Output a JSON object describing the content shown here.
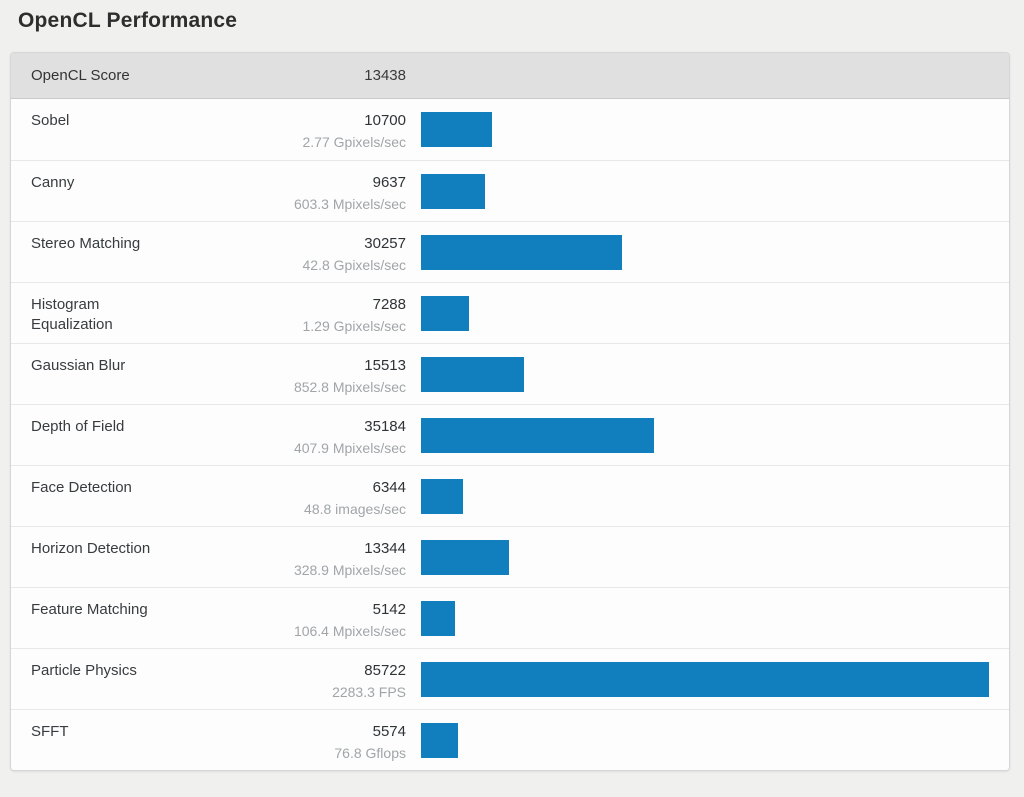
{
  "chart_data": {
    "type": "bar",
    "orientation": "horizontal",
    "title": "OpenCL Performance",
    "overall_score": {
      "label": "OpenCL Score",
      "value": 13438
    },
    "categories": [
      "Sobel",
      "Canny",
      "Stereo Matching",
      "Histogram Equalization",
      "Gaussian Blur",
      "Depth of Field",
      "Face Detection",
      "Horizon Detection",
      "Feature Matching",
      "Particle Physics",
      "SFFT"
    ],
    "values": [
      10700,
      9637,
      30257,
      7288,
      15513,
      35184,
      6344,
      13344,
      5142,
      85722,
      5574
    ],
    "throughputs": [
      "2.77 Gpixels/sec",
      "603.3 Mpixels/sec",
      "42.8 Gpixels/sec",
      "1.29 Gpixels/sec",
      "852.8 Mpixels/sec",
      "407.9 Mpixels/sec",
      "48.8 images/sec",
      "328.9 Mpixels/sec",
      "106.4 Mpixels/sec",
      "2283.3 FPS",
      "76.8 Gflops"
    ],
    "xlim": [
      0,
      85722
    ],
    "bar_color": "#117fbd",
    "legend": false,
    "grid": false
  },
  "colors": {
    "bar": "#117fbd",
    "header_background": "#e0e0e0",
    "panel_background": "#fdfdfd",
    "page_background": "#f0f0ef",
    "throughput_text": "#a1a5a8"
  }
}
